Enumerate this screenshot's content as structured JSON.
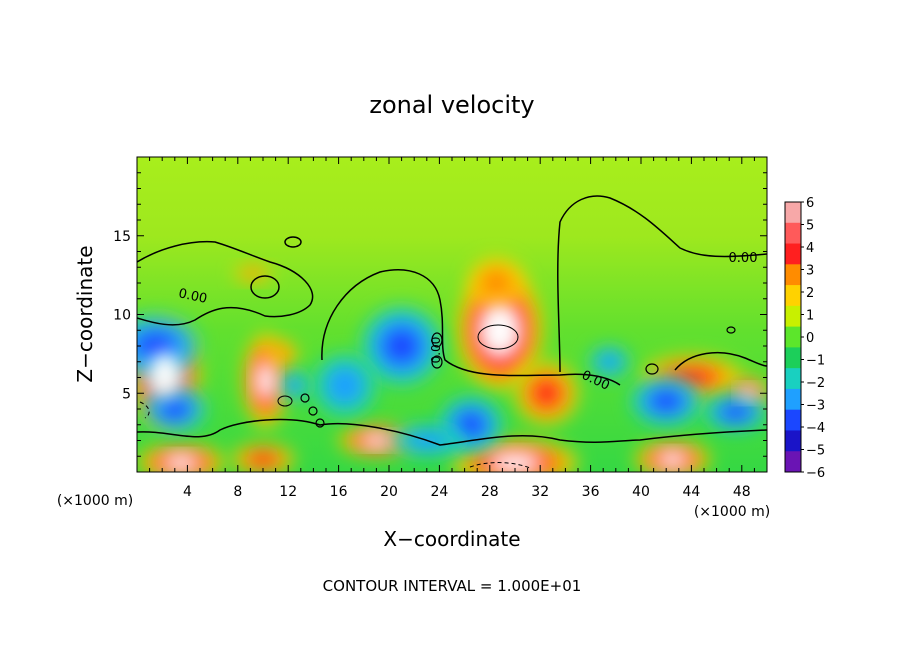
{
  "chart_data": {
    "type": "heatmap",
    "title": "zonal velocity",
    "xlabel": "X−coordinate",
    "ylabel": "Z−coordinate",
    "x_unit_left": "(×1000 m)",
    "x_unit_right": "(×1000 m)",
    "xlim": [
      0,
      50
    ],
    "ylim": [
      0,
      20
    ],
    "x_ticks": [
      4,
      8,
      12,
      16,
      20,
      24,
      28,
      32,
      36,
      40,
      44,
      48
    ],
    "y_ticks": [
      5,
      10,
      15
    ],
    "contour_label": "0.00",
    "footer": "CONTOUR INTERVAL = 1.000E+01",
    "colorbar": {
      "ticks": [
        "6",
        "5",
        "4",
        "3",
        "2",
        "1",
        "0",
        "−1",
        "−2",
        "−3",
        "−4",
        "−5",
        "−6"
      ],
      "colors": [
        "#f7a8a8",
        "#ff5a5a",
        "#ff1f1f",
        "#ff8c00",
        "#ffd200",
        "#c8f000",
        "#5ce62b",
        "#1ccf5a",
        "#19d0c0",
        "#1fa0ff",
        "#1b47ff",
        "#1a14c8",
        "#6a14b4"
      ]
    },
    "features": [
      {
        "kind": "positive",
        "x": 2.2,
        "z": 6.2,
        "rx": 2.8,
        "rz": 3.4,
        "amp": 9
      },
      {
        "kind": "positive",
        "x": 10.2,
        "z": 5.8,
        "rx": 1.8,
        "rz": 3.0,
        "amp": 8
      },
      {
        "kind": "positive",
        "x": 28.8,
        "z": 9.0,
        "rx": 3.4,
        "rz": 3.8,
        "amp": 9
      },
      {
        "kind": "positive",
        "x": 32.5,
        "z": 5.0,
        "rx": 2.5,
        "rz": 2.0,
        "amp": 5
      },
      {
        "kind": "positive",
        "x": 28.5,
        "z": 12.0,
        "rx": 2.2,
        "rz": 1.6,
        "amp": 4
      },
      {
        "kind": "positive",
        "x": 19.0,
        "z": 2.0,
        "rx": 3.0,
        "rz": 1.0,
        "amp": 7
      },
      {
        "kind": "positive",
        "x": 3.5,
        "z": 0.6,
        "rx": 3.5,
        "rz": 1.2,
        "amp": 8
      },
      {
        "kind": "positive",
        "x": 10.0,
        "z": 0.8,
        "rx": 2.5,
        "rz": 1.0,
        "amp": 5
      },
      {
        "kind": "positive",
        "x": 30.0,
        "z": 0.6,
        "rx": 5.0,
        "rz": 1.5,
        "amp": 8
      },
      {
        "kind": "positive",
        "x": 42.5,
        "z": 0.8,
        "rx": 3.0,
        "rz": 1.2,
        "amp": 7
      },
      {
        "kind": "positive",
        "x": 44.0,
        "z": 6.0,
        "rx": 4.0,
        "rz": 1.4,
        "amp": 5
      },
      {
        "kind": "positive",
        "x": 48.5,
        "z": 5.0,
        "rx": 1.6,
        "rz": 1.0,
        "amp": 8
      },
      {
        "kind": "positive",
        "x": 11.5,
        "z": 7.5,
        "rx": 1.2,
        "rz": 0.8,
        "amp": 4
      },
      {
        "kind": "positive",
        "x": 9.2,
        "z": 12.6,
        "rx": 1.5,
        "rz": 0.5,
        "amp": 3
      },
      {
        "kind": "negative",
        "x": 1.5,
        "z": 8.0,
        "rx": 3.5,
        "rz": 2.0,
        "amp": -5
      },
      {
        "kind": "negative",
        "x": 3.0,
        "z": 4.0,
        "rx": 2.5,
        "rz": 1.5,
        "amp": -5
      },
      {
        "kind": "negative",
        "x": 21.0,
        "z": 8.0,
        "rx": 3.2,
        "rz": 2.5,
        "amp": -5
      },
      {
        "kind": "negative",
        "x": 16.5,
        "z": 5.5,
        "rx": 2.5,
        "rz": 2.0,
        "amp": -3
      },
      {
        "kind": "negative",
        "x": 26.5,
        "z": 3.0,
        "rx": 2.5,
        "rz": 1.8,
        "amp": -6
      },
      {
        "kind": "negative",
        "x": 42.0,
        "z": 4.5,
        "rx": 2.8,
        "rz": 1.6,
        "amp": -6
      },
      {
        "kind": "negative",
        "x": 47.5,
        "z": 3.8,
        "rx": 2.5,
        "rz": 1.2,
        "amp": -5
      },
      {
        "kind": "negative",
        "x": 37.5,
        "z": 7.0,
        "rx": 1.6,
        "rz": 1.0,
        "amp": -3
      },
      {
        "kind": "negative",
        "x": 12.5,
        "z": 5.5,
        "rx": 1.2,
        "rz": 1.0,
        "amp": -2
      },
      {
        "kind": "negative",
        "x": 23.0,
        "z": 2.0,
        "rx": 3.0,
        "rz": 1.0,
        "amp": -2
      }
    ]
  }
}
